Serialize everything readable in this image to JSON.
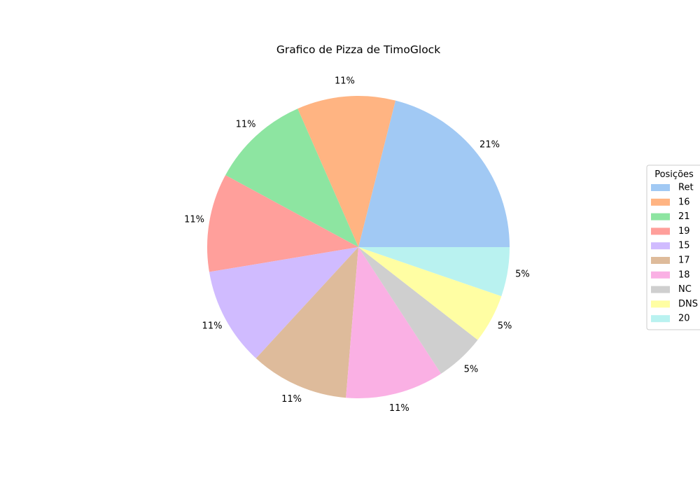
{
  "chart_data": {
    "type": "pie",
    "title": "Grafico de Pizza de TimoGlock",
    "legend_title": "Posições",
    "legend_position": "right",
    "start_angle": 0,
    "direction": "counterclockwise",
    "slices": [
      {
        "label": "Ret",
        "value": 4,
        "pct_label": "21%",
        "color": "#a1c9f4"
      },
      {
        "label": "16",
        "value": 2,
        "pct_label": "11%",
        "color": "#ffb482"
      },
      {
        "label": "21",
        "value": 2,
        "pct_label": "11%",
        "color": "#8de5a1"
      },
      {
        "label": "19",
        "value": 2,
        "pct_label": "11%",
        "color": "#ff9f9b"
      },
      {
        "label": "15",
        "value": 2,
        "pct_label": "11%",
        "color": "#d0bbff"
      },
      {
        "label": "17",
        "value": 2,
        "pct_label": "11%",
        "color": "#debb9b"
      },
      {
        "label": "18",
        "value": 2,
        "pct_label": "11%",
        "color": "#fab0e4"
      },
      {
        "label": "NC",
        "value": 1,
        "pct_label": "5%",
        "color": "#cfcfcf"
      },
      {
        "label": "DNS",
        "value": 1,
        "pct_label": "5%",
        "color": "#fffea3"
      },
      {
        "label": "20",
        "value": 1,
        "pct_label": "5%",
        "color": "#b9f2f0"
      }
    ]
  }
}
